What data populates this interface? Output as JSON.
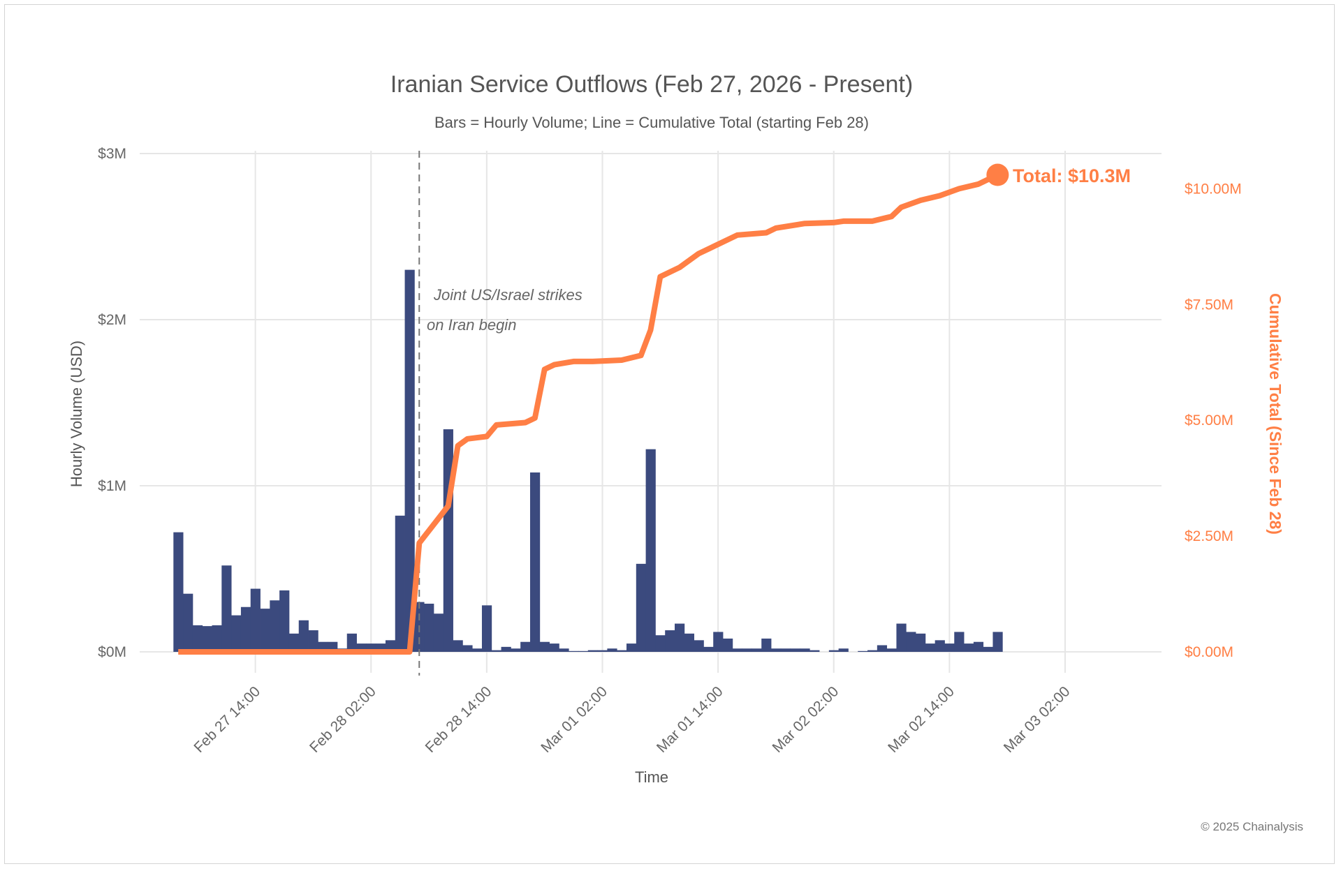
{
  "chart_data": {
    "type": "bar+line",
    "title": "Iranian Service Outflows (Feb 27, 2026 - Present)",
    "subtitle": "Bars = Hourly Volume; Line = Cumulative Total (starting Feb 28)",
    "xlabel": "Time",
    "ylabel": "Hourly Volume (USD)",
    "y2label": "Cumulative Total (Since Feb 28)",
    "xlim": [
      "2026-02-27 02:00",
      "2026-03-03 12:00"
    ],
    "ylim": [
      0,
      3
    ],
    "y2lim": [
      0,
      10.76
    ],
    "x_ticks": [
      {
        "t": "2026-02-27 14:00",
        "label": "Feb 27 14:00"
      },
      {
        "t": "2026-02-28 02:00",
        "label": "Feb 28 02:00"
      },
      {
        "t": "2026-02-28 14:00",
        "label": "Feb 28 14:00"
      },
      {
        "t": "2026-03-01 02:00",
        "label": "Mar 01 02:00"
      },
      {
        "t": "2026-03-01 14:00",
        "label": "Mar 01 14:00"
      },
      {
        "t": "2026-03-02 02:00",
        "label": "Mar 02 02:00"
      },
      {
        "t": "2026-03-02 14:00",
        "label": "Mar 02 14:00"
      },
      {
        "t": "2026-03-03 02:00",
        "label": "Mar 03 02:00"
      }
    ],
    "y_ticks": [
      {
        "v": 0,
        "label": "$0M"
      },
      {
        "v": 1,
        "label": "$1M"
      },
      {
        "v": 2,
        "label": "$2M"
      },
      {
        "v": 3,
        "label": "$3M"
      }
    ],
    "y2_ticks": [
      {
        "v": 0,
        "label": "$0.00M"
      },
      {
        "v": 2.5,
        "label": "$2.50M"
      },
      {
        "v": 5,
        "label": "$5.00M"
      },
      {
        "v": 7.5,
        "label": "$7.50M"
      },
      {
        "v": 10,
        "label": "$10.00M"
      }
    ],
    "bars": {
      "unit": "USD millions",
      "start": "2026-02-27 06:00",
      "interval_hours": 1,
      "color": "#3b4a7e",
      "values": [
        0.72,
        0.35,
        0.16,
        0.155,
        0.16,
        0.52,
        0.22,
        0.27,
        0.38,
        0.26,
        0.31,
        0.37,
        0.11,
        0.19,
        0.13,
        0.06,
        0.06,
        0.02,
        0.11,
        0.05,
        0.05,
        0.05,
        0.07,
        0.82,
        2.3,
        0.3,
        0.29,
        0.23,
        1.34,
        0.07,
        0.04,
        0.02,
        0.28,
        0.01,
        0.03,
        0.02,
        0.06,
        1.08,
        0.06,
        0.05,
        0.02,
        0.005,
        0.005,
        0.01,
        0.01,
        0.02,
        0.01,
        0.05,
        0.53,
        1.22,
        0.1,
        0.13,
        0.17,
        0.11,
        0.07,
        0.03,
        0.12,
        0.08,
        0.02,
        0.02,
        0.02,
        0.08,
        0.02,
        0.02,
        0.02,
        0.02,
        0.01,
        0.0,
        0.01,
        0.02,
        0.0,
        0.005,
        0.01,
        0.04,
        0.02,
        0.17,
        0.12,
        0.11,
        0.05,
        0.07,
        0.05,
        0.12,
        0.05,
        0.06,
        0.03,
        0.12
      ]
    },
    "cumulative": {
      "unit": "USD millions",
      "color": "#ff7f45",
      "points": [
        [
          "2026-02-27 06:00",
          0
        ],
        [
          "2026-02-28 06:00",
          0
        ],
        [
          "2026-02-28 07:00",
          2.35
        ],
        [
          "2026-02-28 10:00",
          3.15
        ],
        [
          "2026-02-28 11:00",
          4.45
        ],
        [
          "2026-02-28 12:00",
          4.6
        ],
        [
          "2026-02-28 14:00",
          4.65
        ],
        [
          "2026-02-28 15:00",
          4.9
        ],
        [
          "2026-02-28 18:00",
          4.95
        ],
        [
          "2026-02-28 19:00",
          5.05
        ],
        [
          "2026-02-28 20:00",
          6.1
        ],
        [
          "2026-02-28 21:00",
          6.2
        ],
        [
          "2026-02-28 23:00",
          6.27
        ],
        [
          "2026-03-01 01:00",
          6.27
        ],
        [
          "2026-03-01 04:00",
          6.3
        ],
        [
          "2026-03-01 06:00",
          6.4
        ],
        [
          "2026-03-01 07:00",
          6.95
        ],
        [
          "2026-03-01 08:00",
          8.1
        ],
        [
          "2026-03-01 10:00",
          8.3
        ],
        [
          "2026-03-01 12:00",
          8.6
        ],
        [
          "2026-03-01 13:30",
          8.75
        ],
        [
          "2026-03-01 16:00",
          9.0
        ],
        [
          "2026-03-01 19:00",
          9.05
        ],
        [
          "2026-03-01 20:00",
          9.15
        ],
        [
          "2026-03-01 23:00",
          9.25
        ],
        [
          "2026-03-02 02:00",
          9.27
        ],
        [
          "2026-03-02 03:00",
          9.3
        ],
        [
          "2026-03-02 06:00",
          9.3
        ],
        [
          "2026-03-02 08:00",
          9.4
        ],
        [
          "2026-03-02 09:00",
          9.6
        ],
        [
          "2026-03-02 11:00",
          9.75
        ],
        [
          "2026-03-02 13:00",
          9.85
        ],
        [
          "2026-03-02 15:00",
          10.0
        ],
        [
          "2026-03-02 17:00",
          10.1
        ],
        [
          "2026-03-02 19:00",
          10.3
        ]
      ],
      "end_label": "Total: $10.3M"
    },
    "event": {
      "t": "2026-02-28 07:00",
      "label_line1": "Joint US/Israel strikes",
      "label_line2": "on Iran begin"
    },
    "grid": true
  },
  "footer": {
    "copyright": "© 2025 Chainalysis"
  }
}
